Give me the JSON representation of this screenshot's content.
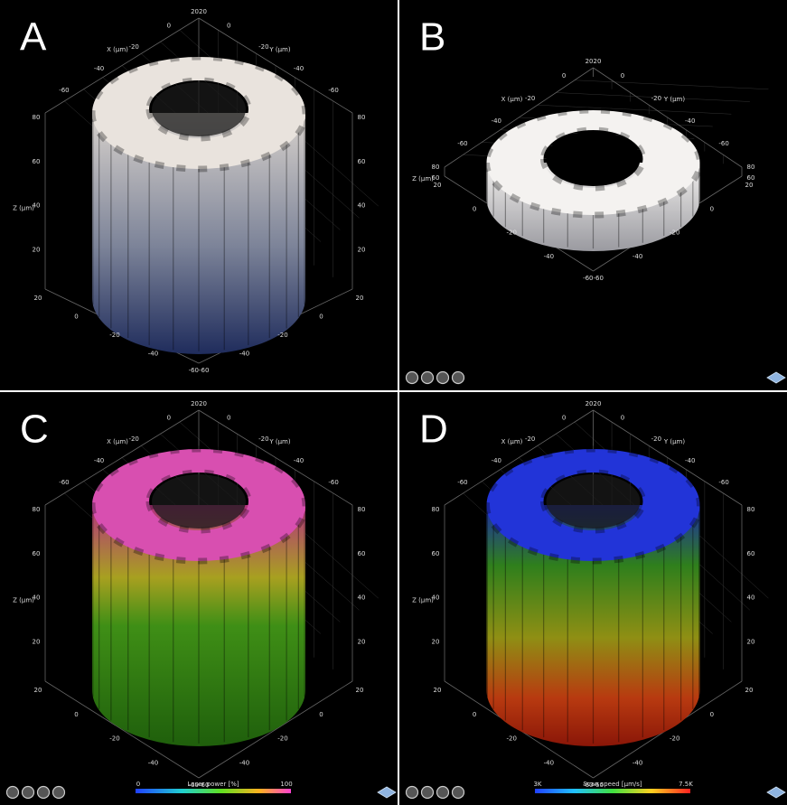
{
  "panels": [
    {
      "label": "A",
      "top_label": "2020",
      "x_axis": "X (µm)",
      "y_axis": "Y (µm)",
      "z_axis": "Z (µm)",
      "upper_ticks_left": [
        "0",
        "-20",
        "-40",
        "-60"
      ],
      "upper_ticks_right": [
        "0",
        "-20",
        "-40",
        "-60"
      ],
      "z_ticks": [
        "80",
        "60",
        "40",
        "20"
      ],
      "lower_ticks_left": [
        "20",
        "0",
        "-20",
        "-40"
      ],
      "lower_ticks_right": [
        "20",
        "0",
        "-20",
        "-40"
      ],
      "bottom_label": "-60-60"
    },
    {
      "label": "B",
      "top_label": "2020",
      "x_axis": "X (µm)",
      "y_axis": "Y (µm)",
      "z_axis": "Z (µm)",
      "upper_ticks_left": [
        "0",
        "-20",
        "-40",
        "-60"
      ],
      "upper_ticks_right": [
        "0",
        "-20",
        "-40",
        "-60"
      ],
      "z_ticks": [
        "80",
        "60"
      ],
      "lower_ticks_left": [
        "20",
        "0",
        "-20",
        "-40"
      ],
      "lower_ticks_right": [
        "20",
        "0",
        "-20",
        "-40"
      ],
      "bottom_label": "-60-60"
    },
    {
      "label": "C",
      "top_label": "2020",
      "x_axis": "X (µm)",
      "y_axis": "Y (µm)",
      "z_axis": "Z (µm)",
      "upper_ticks_left": [
        "0",
        "-20",
        "-40",
        "-60"
      ],
      "upper_ticks_right": [
        "0",
        "-20",
        "-40",
        "-60"
      ],
      "z_ticks": [
        "80",
        "60",
        "40",
        "20"
      ],
      "lower_ticks_left": [
        "20",
        "0",
        "-20",
        "-40"
      ],
      "lower_ticks_right": [
        "20",
        "0",
        "-20",
        "-40"
      ],
      "bottom_label": "-60-60",
      "colorbar": {
        "title": "Laser power [%]",
        "min": "0",
        "max": "100"
      }
    },
    {
      "label": "D",
      "top_label": "2020",
      "x_axis": "X (µm)",
      "y_axis": "Y (µm)",
      "z_axis": "Z (µm)",
      "upper_ticks_left": [
        "0",
        "-20",
        "-40",
        "-60"
      ],
      "upper_ticks_right": [
        "0",
        "-20",
        "-40",
        "-60"
      ],
      "z_ticks": [
        "80",
        "60",
        "40",
        "20"
      ],
      "lower_ticks_left": [
        "20",
        "0",
        "-20",
        "-40"
      ],
      "lower_ticks_right": [
        "20",
        "0",
        "-20",
        "-40"
      ],
      "bottom_label": "-60-60",
      "colorbar": {
        "title": "Scan speed [µm/s]",
        "min": "3K",
        "max": "7.5K"
      }
    }
  ]
}
